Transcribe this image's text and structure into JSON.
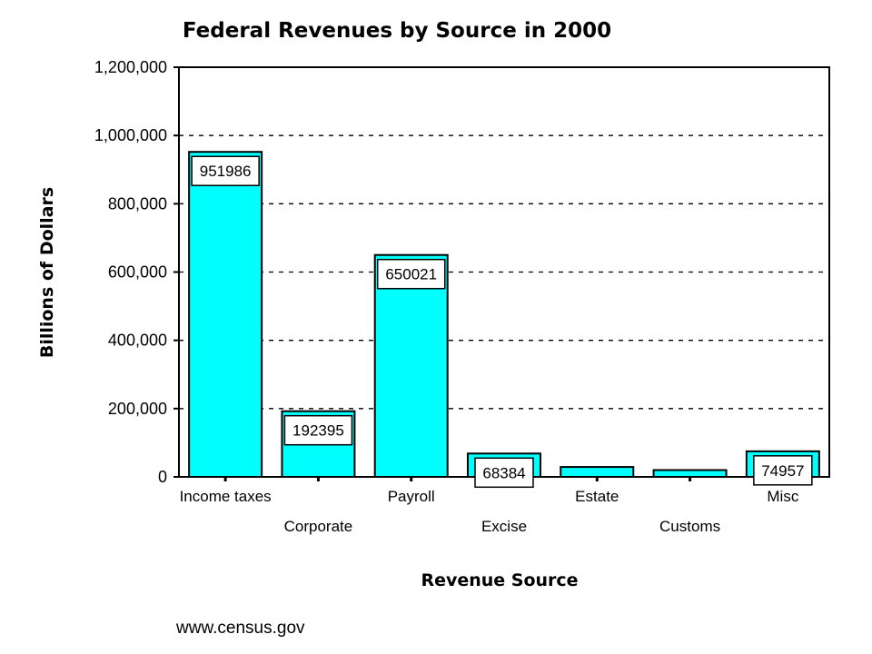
{
  "chart_data": {
    "type": "bar",
    "title": "Federal Revenues by Source in 2000",
    "xlabel": "Revenue Source",
    "ylabel": "Billions of Dollars",
    "categories": [
      "Income taxes",
      "Corporate",
      "Payroll",
      "Excise",
      "Estate",
      "Customs",
      "Misc"
    ],
    "values": [
      951986,
      192395,
      650021,
      68384,
      29010,
      19914,
      74957
    ],
    "data_labels": [
      "951986",
      "192395",
      "650021",
      "68384",
      "",
      "",
      "74957"
    ],
    "ylim": [
      0,
      1200000
    ],
    "yticks": [
      0,
      200000,
      400000,
      600000,
      800000,
      1000000,
      1200000
    ],
    "ytick_labels": [
      "0",
      "200,000",
      "400,000",
      "600,000",
      "800,000",
      "1,000,000",
      "1,200,000"
    ],
    "grid": true,
    "grid_style": "dashed",
    "bar_color": "#00ffff",
    "source": "www.census.gov"
  }
}
